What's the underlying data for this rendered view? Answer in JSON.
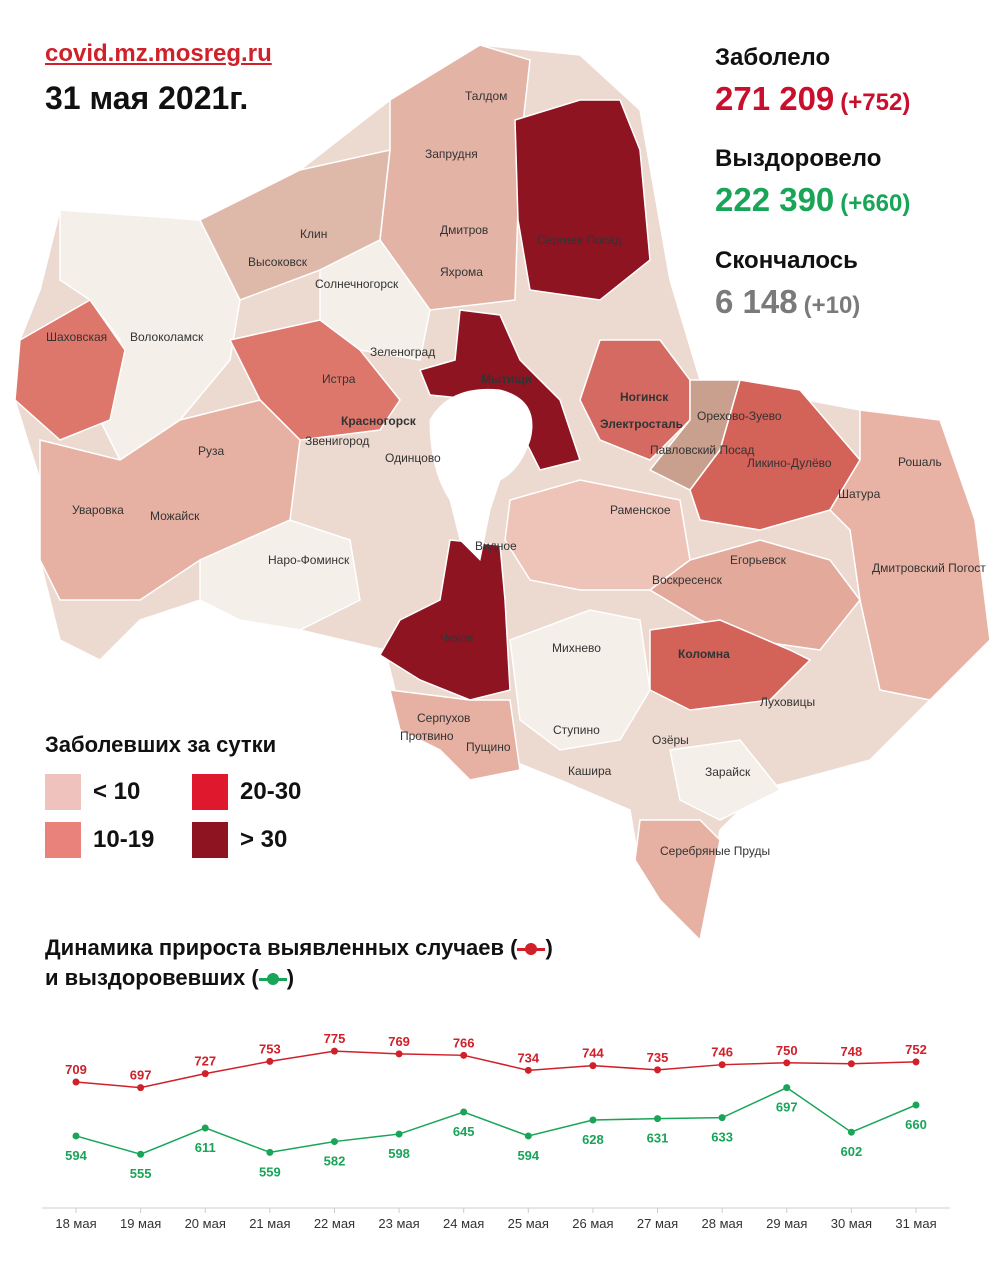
{
  "header": {
    "source": "covid.mz.mosreg.ru",
    "date": "31 мая 2021г."
  },
  "stats": {
    "infected": {
      "label": "Заболело",
      "value": "271 209",
      "delta": "(+752)",
      "color": "#c8102e"
    },
    "recovered": {
      "label": "Выздоровело",
      "value": "222 390",
      "delta": "(+660)",
      "color": "#18a558"
    },
    "deaths": {
      "label": "Скончалось",
      "value": "6 148",
      "delta": "(+10)",
      "color": "#7a7a7a"
    }
  },
  "legend": {
    "title": "Заболевших за сутки",
    "items": [
      {
        "label": "< 10",
        "color": "#f0c2bd"
      },
      {
        "label": "20-30",
        "color": "#e0182d"
      },
      {
        "label": "10-19",
        "color": "#e9827a"
      },
      {
        "label": "> 30",
        "color": "#8e1422"
      }
    ]
  },
  "map": {
    "city_labels": [
      "Талдом",
      "Запрудня",
      "Дмитров",
      "Клин",
      "Высоковск",
      "Яхрома",
      "Сергиев Посад",
      "Солнечногорск",
      "Шаховская",
      "Волоколамск",
      "Зеленоград",
      "Истра",
      "Мытищи",
      "Красногорск",
      "Ногинск",
      "Электросталь",
      "Орехово-Зуево",
      "Павловский Посад",
      "Ликино-Дулёво",
      "Звенигород",
      "Одинцово",
      "Руза",
      "Рошаль",
      "Уваровка",
      "Можайск",
      "Раменское",
      "Шатура",
      "Наро-Фоминск",
      "Видное",
      "Воскресенск",
      "Егорьевск",
      "Дмитровский Погост",
      "Чехов",
      "Михнево",
      "Коломна",
      "Луховицы",
      "Серпухов",
      "Пущино",
      "Ступино",
      "Озёры",
      "Протвино",
      "Кашира",
      "Зарайск",
      "Серебряные Пруды"
    ]
  },
  "dynamics": {
    "title_line1": "Динамика прироста выявленных случаев (",
    "title_line1_end": ")",
    "title_line2": "и выздоровевших (",
    "title_line2_end": ")"
  },
  "chart_data": {
    "type": "line",
    "x": [
      "18 мая",
      "19 мая",
      "20 мая",
      "21 мая",
      "22 мая",
      "23 мая",
      "24 мая",
      "25 мая",
      "26 мая",
      "27 мая",
      "28 мая",
      "29 мая",
      "30 мая",
      "31 мая"
    ],
    "series": [
      {
        "name": "выявленных случаев",
        "color": "#d0202a",
        "values": [
          709,
          697,
          727,
          753,
          775,
          769,
          766,
          734,
          744,
          735,
          746,
          750,
          748,
          752
        ]
      },
      {
        "name": "выздоровевших",
        "color": "#18a558",
        "values": [
          594,
          555,
          611,
          559,
          582,
          598,
          645,
          594,
          628,
          631,
          633,
          697,
          602,
          660
        ]
      }
    ]
  }
}
